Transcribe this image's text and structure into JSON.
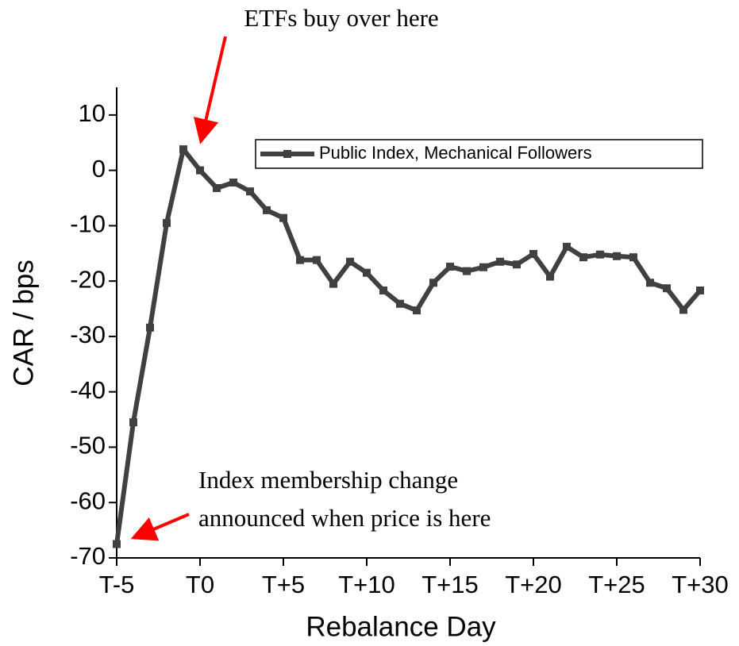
{
  "chart_data": {
    "type": "line",
    "xlabel": "Rebalance Day",
    "ylabel": "CAR / bps",
    "annotations": [
      "ETFs buy over here",
      "Index membership change",
      "announced when price is here"
    ],
    "x": [
      -5,
      -4,
      -3,
      -2,
      -1,
      0,
      1,
      2,
      3,
      4,
      5,
      6,
      7,
      8,
      9,
      10,
      11,
      12,
      13,
      14,
      15,
      16,
      17,
      18,
      19,
      20,
      21,
      22,
      23,
      24,
      25,
      26,
      27,
      28,
      29,
      30
    ],
    "series": [
      {
        "name": "Public Index, Mechanical Followers",
        "color": "#404040",
        "values": [
          -67.5,
          -45.5,
          -28.4,
          -9.5,
          3.8,
          0,
          -3.2,
          -2.2,
          -3.8,
          -7.2,
          -8.6,
          -16.2,
          -16.2,
          -20.5,
          -16.5,
          -18.5,
          -21.7,
          -24.1,
          -25.3,
          -20.3,
          -17.4,
          -18.2,
          -17.5,
          -16.5,
          -17,
          -15.1,
          -19.2,
          -13.8,
          -15.7,
          -15.2,
          -15.5,
          -15.7,
          -20.3,
          -21.3,
          -25.2,
          -21.7
        ]
      }
    ],
    "xlim": [
      -5,
      30
    ],
    "xticks": [
      {
        "value": -5,
        "label": "T-5"
      },
      {
        "value": 0,
        "label": "T0"
      },
      {
        "value": 5,
        "label": "T+5"
      },
      {
        "value": 10,
        "label": "T+10"
      },
      {
        "value": 15,
        "label": "T+15"
      },
      {
        "value": 20,
        "label": "T+20"
      },
      {
        "value": 25,
        "label": "T+25"
      },
      {
        "value": 30,
        "label": "T+30"
      }
    ],
    "ylim": [
      -70,
      15
    ],
    "yticks": [
      -70,
      -60,
      -50,
      -40,
      -30,
      -20,
      -10,
      0,
      10
    ],
    "legend": "upper right"
  }
}
